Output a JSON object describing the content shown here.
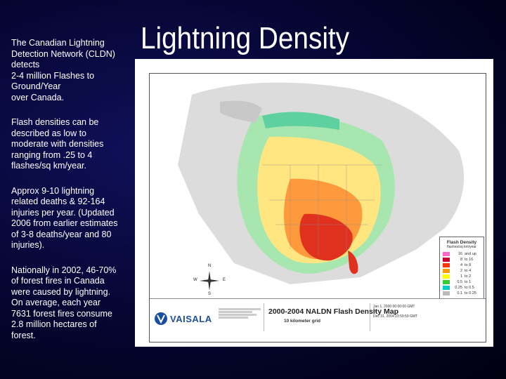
{
  "slide": {
    "title": "Lightning Density",
    "paragraphs": [
      "The Canadian Lightning\nDetection Network (CLDN)\ndetects\n2-4 million Flashes to\nGround/Year\nover Canada.",
      "Flash densities can be\ndescribed as low to\nmoderate with densities\nranging from .25 to 4\nflashes/sq km/year.",
      "Approx 9-10 lightning\nrelated deaths & 92-164\ninjuries per year. (Updated\n2006 from earlier estimates\nof 3-8 deaths/year and 80\ninjuries).",
      "Nationally in 2002, 46-70%\nof forest fires in Canada\nwere caused by lightning.\nOn average, each year\n7631 forest fires consume\n2.8 million hectares of\nforest."
    ]
  },
  "map": {
    "footer_title": "2000-2004 NALDN Flash Density Map",
    "footer_subtitle": "10 kilometer grid",
    "brand": "VAISALA",
    "dates": "Jan 1, 2000 00:00:00 GMT\nTo\nDec 31, 2004 23:59:59 GMT",
    "compass": {
      "n": "N",
      "s": "S",
      "e": "E",
      "w": "W"
    },
    "legend": {
      "title": "Flash Density",
      "unit": "flashes/sq km/year",
      "rows": [
        {
          "value": "16",
          "range": "and up",
          "color": "#ff66cc"
        },
        {
          "value": "8",
          "range": "to 16",
          "color": "#cc0033"
        },
        {
          "value": "4",
          "range": "to 8",
          "color": "#ff3300"
        },
        {
          "value": "2",
          "range": "to 4",
          "color": "#ff9900"
        },
        {
          "value": "1",
          "range": "to 2",
          "color": "#ffff00"
        },
        {
          "value": "0.5",
          "range": "to 1",
          "color": "#33cc33"
        },
        {
          "value": "0.25",
          "range": "to 0.5",
          "color": "#00cccc"
        },
        {
          "value": "0.1",
          "range": "to 0.25",
          "color": "#bbbbbb"
        }
      ]
    }
  }
}
